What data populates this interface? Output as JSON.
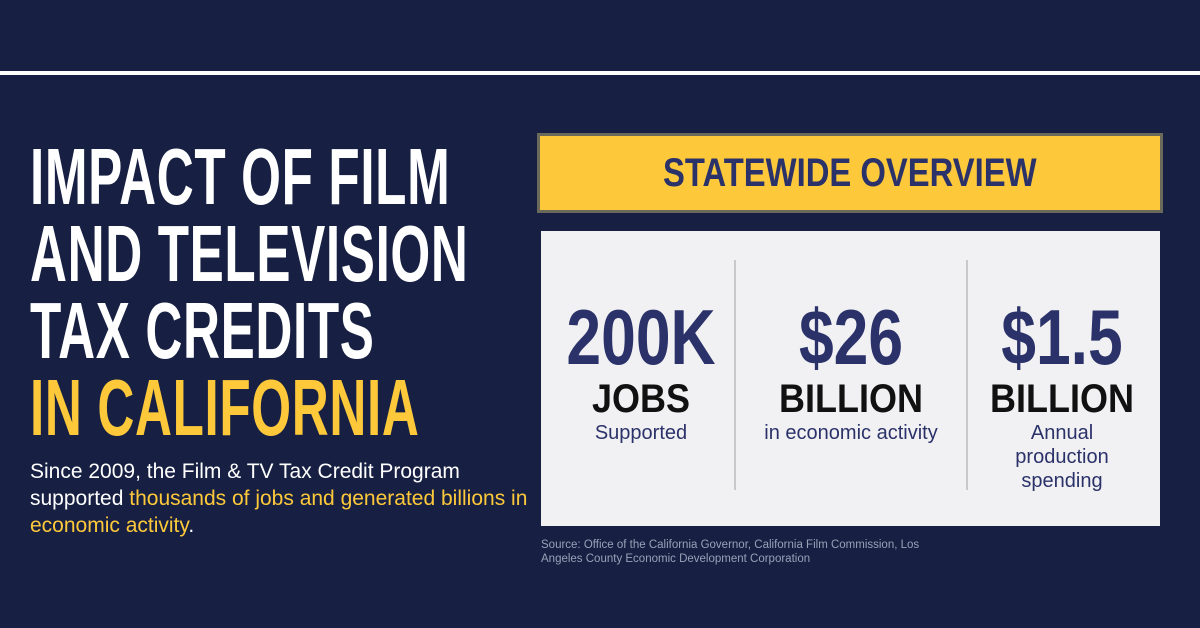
{
  "title": {
    "lines": [
      "IMPACT OF FILM",
      "AND TELEVISION",
      "TAX CREDITS"
    ],
    "highlight": "IN CALIFORNIA"
  },
  "description": {
    "lead": "Since 2009, the Film & TV Tax Credit Program supported ",
    "highlight": "thousands of jobs and generated billions in economic activity",
    "end": "."
  },
  "panel": {
    "heading": "STATEWIDE OVERVIEW",
    "stats": [
      {
        "figure": "200K",
        "unit": "JOBS",
        "caption": "Supported"
      },
      {
        "figure": "$26",
        "unit": "BILLION",
        "caption": "in economic activity"
      },
      {
        "figure": "$1.5",
        "unit": "BILLION",
        "caption": "Annual production spending"
      }
    ]
  },
  "source": "Source: Office of the California Governor, California Film Commission, Los Angeles County Economic Development Corporation"
}
